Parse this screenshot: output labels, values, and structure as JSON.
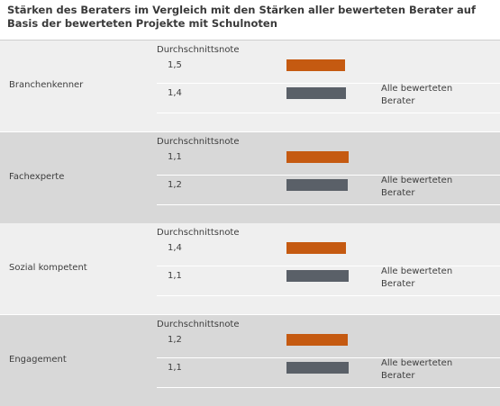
{
  "chart_data": {
    "type": "bar",
    "title": "Stärken des Beraters im Vergleich mit den Stärken aller bewerteten Berater auf Basis der bewerteten Projekte mit Schulnoten",
    "categories": [
      "Branchenkenner",
      "Fachexperte",
      "Sozial kompetent",
      "Engagement"
    ],
    "value_label": "Durchschnittsnote",
    "series": [
      {
        "values": [
          1.5,
          1.1,
          1.4,
          1.2
        ],
        "color": "#c55a11"
      },
      {
        "name": "Alle bewerteten Berater",
        "values": [
          1.4,
          1.2,
          1.1,
          1.1
        ],
        "color": "#5a6068"
      }
    ],
    "display_values": [
      [
        "1,5",
        "1,4"
      ],
      [
        "1,1",
        "1,2"
      ],
      [
        "1,4",
        "1,1"
      ],
      [
        "1,2",
        "1,1"
      ]
    ],
    "legend_text": [
      "Alle bewerteten",
      "Berater"
    ]
  }
}
